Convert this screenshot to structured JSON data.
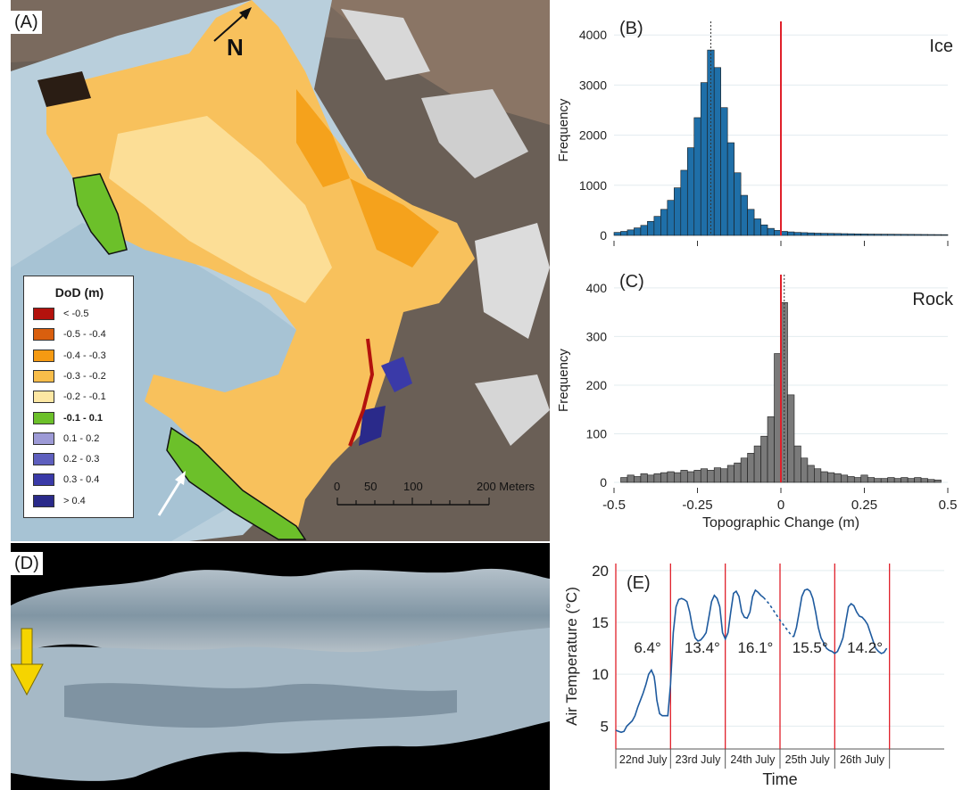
{
  "panel_a": {
    "label": "(A)",
    "north_label": "N",
    "legend": {
      "title": "DoD (m)",
      "items": [
        {
          "label": "< -0.5",
          "color": "#b3120d"
        },
        {
          "label": "-0.5 - -0.4",
          "color": "#d95f0e"
        },
        {
          "label": "-0.4 - -0.3",
          "color": "#f59a12"
        },
        {
          "label": "-0.3 - -0.2",
          "color": "#f8bd4a"
        },
        {
          "label": "-0.2 - -0.1",
          "color": "#fde7a3"
        },
        {
          "label": "-0.1 - 0.1",
          "color": "#6cc02a"
        },
        {
          "label": "0.1 - 0.2",
          "color": "#9d9ad6"
        },
        {
          "label": "0.2 - 0.3",
          "color": "#5e5fbe"
        },
        {
          "label": "0.3 - 0.4",
          "color": "#3a3aa8"
        },
        {
          "label": "> 0.4",
          "color": "#2a2a8a"
        }
      ]
    },
    "scale_bar": {
      "ticks": [
        "0",
        "50",
        "100",
        "200 Meters"
      ]
    }
  },
  "panel_d": {
    "label": "(D)"
  },
  "chart_data": [
    {
      "type": "bar",
      "panel_label": "(B)",
      "annotation": "Ice",
      "ylabel": "Frequency",
      "xlabel": "",
      "xlim": [
        -0.5,
        0.5
      ],
      "ylim": [
        0,
        4200
      ],
      "y_ticks": [
        "0",
        "1000",
        "2000",
        "3000",
        "4000"
      ],
      "bin_width": 0.02,
      "bin_starts": [
        -0.5,
        -0.48,
        -0.46,
        -0.44,
        -0.42,
        -0.4,
        -0.38,
        -0.36,
        -0.34,
        -0.32,
        -0.3,
        -0.28,
        -0.26,
        -0.24,
        -0.22,
        -0.2,
        -0.18,
        -0.16,
        -0.14,
        -0.12,
        -0.1,
        -0.08,
        -0.06,
        -0.04,
        -0.02,
        0.0,
        0.02,
        0.04,
        0.06,
        0.08,
        0.1,
        0.12,
        0.14,
        0.16,
        0.18,
        0.2,
        0.22,
        0.24,
        0.26,
        0.28,
        0.3,
        0.32,
        0.34,
        0.36,
        0.38,
        0.4,
        0.42,
        0.44,
        0.46,
        0.48
      ],
      "values": [
        60,
        80,
        110,
        150,
        200,
        280,
        380,
        520,
        700,
        950,
        1300,
        1750,
        2350,
        3050,
        3700,
        3350,
        2550,
        1850,
        1250,
        800,
        520,
        330,
        210,
        140,
        100,
        80,
        70,
        60,
        55,
        50,
        45,
        42,
        40,
        38,
        35,
        33,
        30,
        28,
        26,
        25,
        24,
        23,
        22,
        21,
        20,
        19,
        18,
        17,
        16,
        15
      ],
      "reference_lines": [
        {
          "x": 0,
          "style": "red-solid"
        },
        {
          "x": -0.21,
          "style": "dotted"
        }
      ],
      "bar_color": "#1f6fa8"
    },
    {
      "type": "bar",
      "panel_label": "(C)",
      "annotation": "Rock",
      "ylabel": "Frequency",
      "xlabel": "Topographic Change (m)",
      "xlim": [
        -0.5,
        0.5
      ],
      "ylim": [
        0,
        420
      ],
      "y_ticks": [
        "0",
        "100",
        "200",
        "300",
        "400"
      ],
      "x_ticks": [
        "-0.5",
        "-0.25",
        "0",
        "0.25",
        "0.5"
      ],
      "bin_width": 0.02,
      "bin_starts": [
        -0.48,
        -0.46,
        -0.44,
        -0.42,
        -0.4,
        -0.38,
        -0.36,
        -0.34,
        -0.32,
        -0.3,
        -0.28,
        -0.26,
        -0.24,
        -0.22,
        -0.2,
        -0.18,
        -0.16,
        -0.14,
        -0.12,
        -0.1,
        -0.08,
        -0.06,
        -0.04,
        -0.02,
        0.0,
        0.02,
        0.04,
        0.06,
        0.08,
        0.1,
        0.12,
        0.14,
        0.16,
        0.18,
        0.2,
        0.22,
        0.24,
        0.26,
        0.28,
        0.3,
        0.32,
        0.34,
        0.36,
        0.38,
        0.4,
        0.42,
        0.44,
        0.46
      ],
      "values": [
        10,
        15,
        12,
        18,
        15,
        18,
        20,
        22,
        20,
        25,
        22,
        25,
        28,
        25,
        30,
        28,
        35,
        40,
        50,
        60,
        75,
        95,
        135,
        265,
        370,
        180,
        75,
        50,
        35,
        28,
        22,
        20,
        18,
        15,
        12,
        10,
        15,
        10,
        8,
        8,
        10,
        8,
        10,
        8,
        10,
        8,
        6,
        5
      ],
      "reference_lines": [
        {
          "x": 0,
          "style": "red-solid"
        },
        {
          "x": 0.01,
          "style": "dotted"
        }
      ],
      "bar_color": "#7a7a7a"
    },
    {
      "type": "line",
      "panel_label": "(E)",
      "xlabel": "Time",
      "ylabel": "Air Temperature (°C)",
      "ylim": [
        4,
        20.5
      ],
      "xlim": [
        0,
        6
      ],
      "y_ticks": [
        "5",
        "10",
        "15",
        "20"
      ],
      "day_labels": [
        "22nd July",
        "23rd July",
        "24th July",
        "25th July",
        "26th July"
      ],
      "day_boundaries": [
        0,
        1,
        2,
        3,
        4,
        5
      ],
      "annotations": [
        {
          "text": "6.4°",
          "x": 0.58,
          "y": 12.6
        },
        {
          "text": "13.4°",
          "x": 1.58,
          "y": 12.6
        },
        {
          "text": "16.1°",
          "x": 2.55,
          "y": 12.6
        },
        {
          "text": "15.5°",
          "x": 3.55,
          "y": 12.6
        },
        {
          "text": "14.2°",
          "x": 4.55,
          "y": 12.6
        }
      ],
      "series": [
        {
          "x": [
            0.0,
            0.05,
            0.1,
            0.15,
            0.2,
            0.3,
            0.35,
            0.4,
            0.45,
            0.5,
            0.55,
            0.6,
            0.65,
            0.7,
            0.72,
            0.75,
            0.8,
            0.85,
            0.9,
            0.95,
            1.0,
            1.05,
            1.1,
            1.15,
            1.2,
            1.25,
            1.3,
            1.35,
            1.4,
            1.45,
            1.5,
            1.55,
            1.6,
            1.65,
            1.7,
            1.75,
            1.8,
            1.85,
            1.9,
            1.95,
            2.0,
            2.05,
            2.1,
            2.15,
            2.2,
            2.25,
            2.3,
            2.35,
            2.4,
            2.45,
            2.5,
            2.55,
            2.6,
            2.65,
            2.7
          ],
          "y": [
            4.6,
            4.5,
            4.4,
            4.5,
            5.0,
            5.5,
            6.0,
            6.8,
            7.5,
            8.2,
            9.0,
            10.0,
            10.4,
            9.8,
            9.0,
            7.5,
            6.2,
            6.0,
            6.0,
            6.0,
            9.0,
            14.0,
            16.5,
            17.2,
            17.3,
            17.2,
            17.0,
            16.0,
            14.5,
            13.5,
            13.2,
            13.3,
            13.6,
            14.0,
            15.5,
            17.0,
            17.6,
            17.3,
            16.5,
            14.0,
            13.4,
            14.0,
            16.0,
            17.8,
            18.0,
            17.5,
            16.0,
            15.5,
            15.4,
            16.0,
            17.5,
            18.1,
            17.9,
            17.6,
            17.4
          ],
          "color": "#1e5a9e"
        },
        {
          "x": [
            2.7,
            2.8,
            2.9,
            3.0,
            3.1,
            3.2,
            3.25
          ],
          "y": [
            17.4,
            16.8,
            16.0,
            15.2,
            14.5,
            13.8,
            13.6
          ],
          "style": "dotted",
          "color": "#1e5a9e"
        },
        {
          "x": [
            3.25,
            3.3,
            3.35,
            3.4,
            3.45,
            3.5,
            3.55,
            3.6,
            3.65,
            3.7,
            3.75,
            3.8,
            3.85,
            3.9,
            3.95,
            4.0,
            4.05,
            4.1,
            4.15,
            4.2,
            4.25,
            4.3,
            4.35,
            4.4,
            4.45,
            4.5,
            4.55,
            4.6,
            4.65,
            4.7,
            4.75,
            4.8,
            4.85,
            4.9,
            4.95
          ],
          "y": [
            13.6,
            14.5,
            16.0,
            17.5,
            18.1,
            18.2,
            18.0,
            17.3,
            16.0,
            14.5,
            13.5,
            13.0,
            12.5,
            12.3,
            12.2,
            12.0,
            12.2,
            12.8,
            13.5,
            15.0,
            16.5,
            16.8,
            16.6,
            16.0,
            15.6,
            15.5,
            15.2,
            14.8,
            14.0,
            13.2,
            12.5,
            12.2,
            12.0,
            12.1,
            12.5
          ],
          "color": "#1e5a9e"
        }
      ]
    }
  ]
}
